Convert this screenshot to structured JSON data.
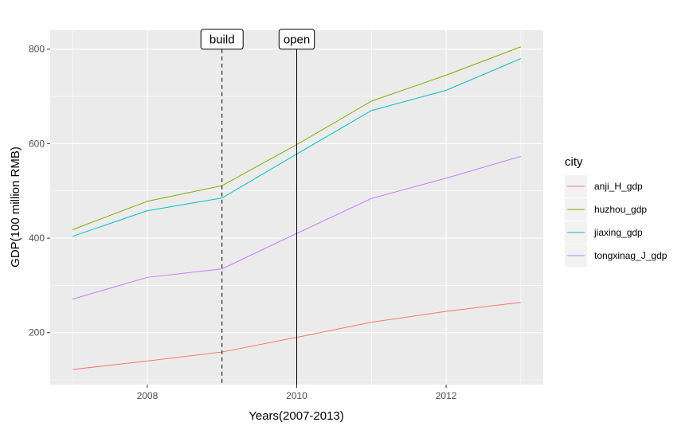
{
  "chart_data": {
    "type": "line",
    "xlabel": "Years(2007-2013)",
    "ylabel": "GDP(100 million RMB)",
    "x": [
      2007,
      2008,
      2009,
      2010,
      2011,
      2012,
      2013
    ],
    "xlim": [
      2006.7,
      2013.3
    ],
    "ylim": [
      90,
      840
    ],
    "xticks": [
      2008,
      2010,
      2012
    ],
    "yticks": [
      200,
      400,
      600,
      800
    ],
    "grid": true,
    "legend": {
      "title": "city",
      "position": "right"
    },
    "series": [
      {
        "name": "anji_H_gdp",
        "color": "#F8766D",
        "values": [
          122,
          140,
          159,
          190,
          222,
          245,
          264
        ]
      },
      {
        "name": "huzhou_gdp",
        "color": "#7CAE00",
        "values": [
          418,
          478,
          511,
          598,
          690,
          745,
          805
        ]
      },
      {
        "name": "jiaxing_gdp",
        "color": "#00BFC4",
        "values": [
          404,
          458,
          485,
          578,
          670,
          713,
          780
        ]
      },
      {
        "name": "tongxinag_J_gdp",
        "color": "#C77CFF",
        "values": [
          271,
          317,
          335,
          410,
          484,
          527,
          573
        ]
      }
    ],
    "annotations": [
      {
        "label": "build",
        "x": 2009,
        "linestyle": "dashed"
      },
      {
        "label": "open",
        "x": 2010,
        "linestyle": "solid"
      }
    ]
  }
}
